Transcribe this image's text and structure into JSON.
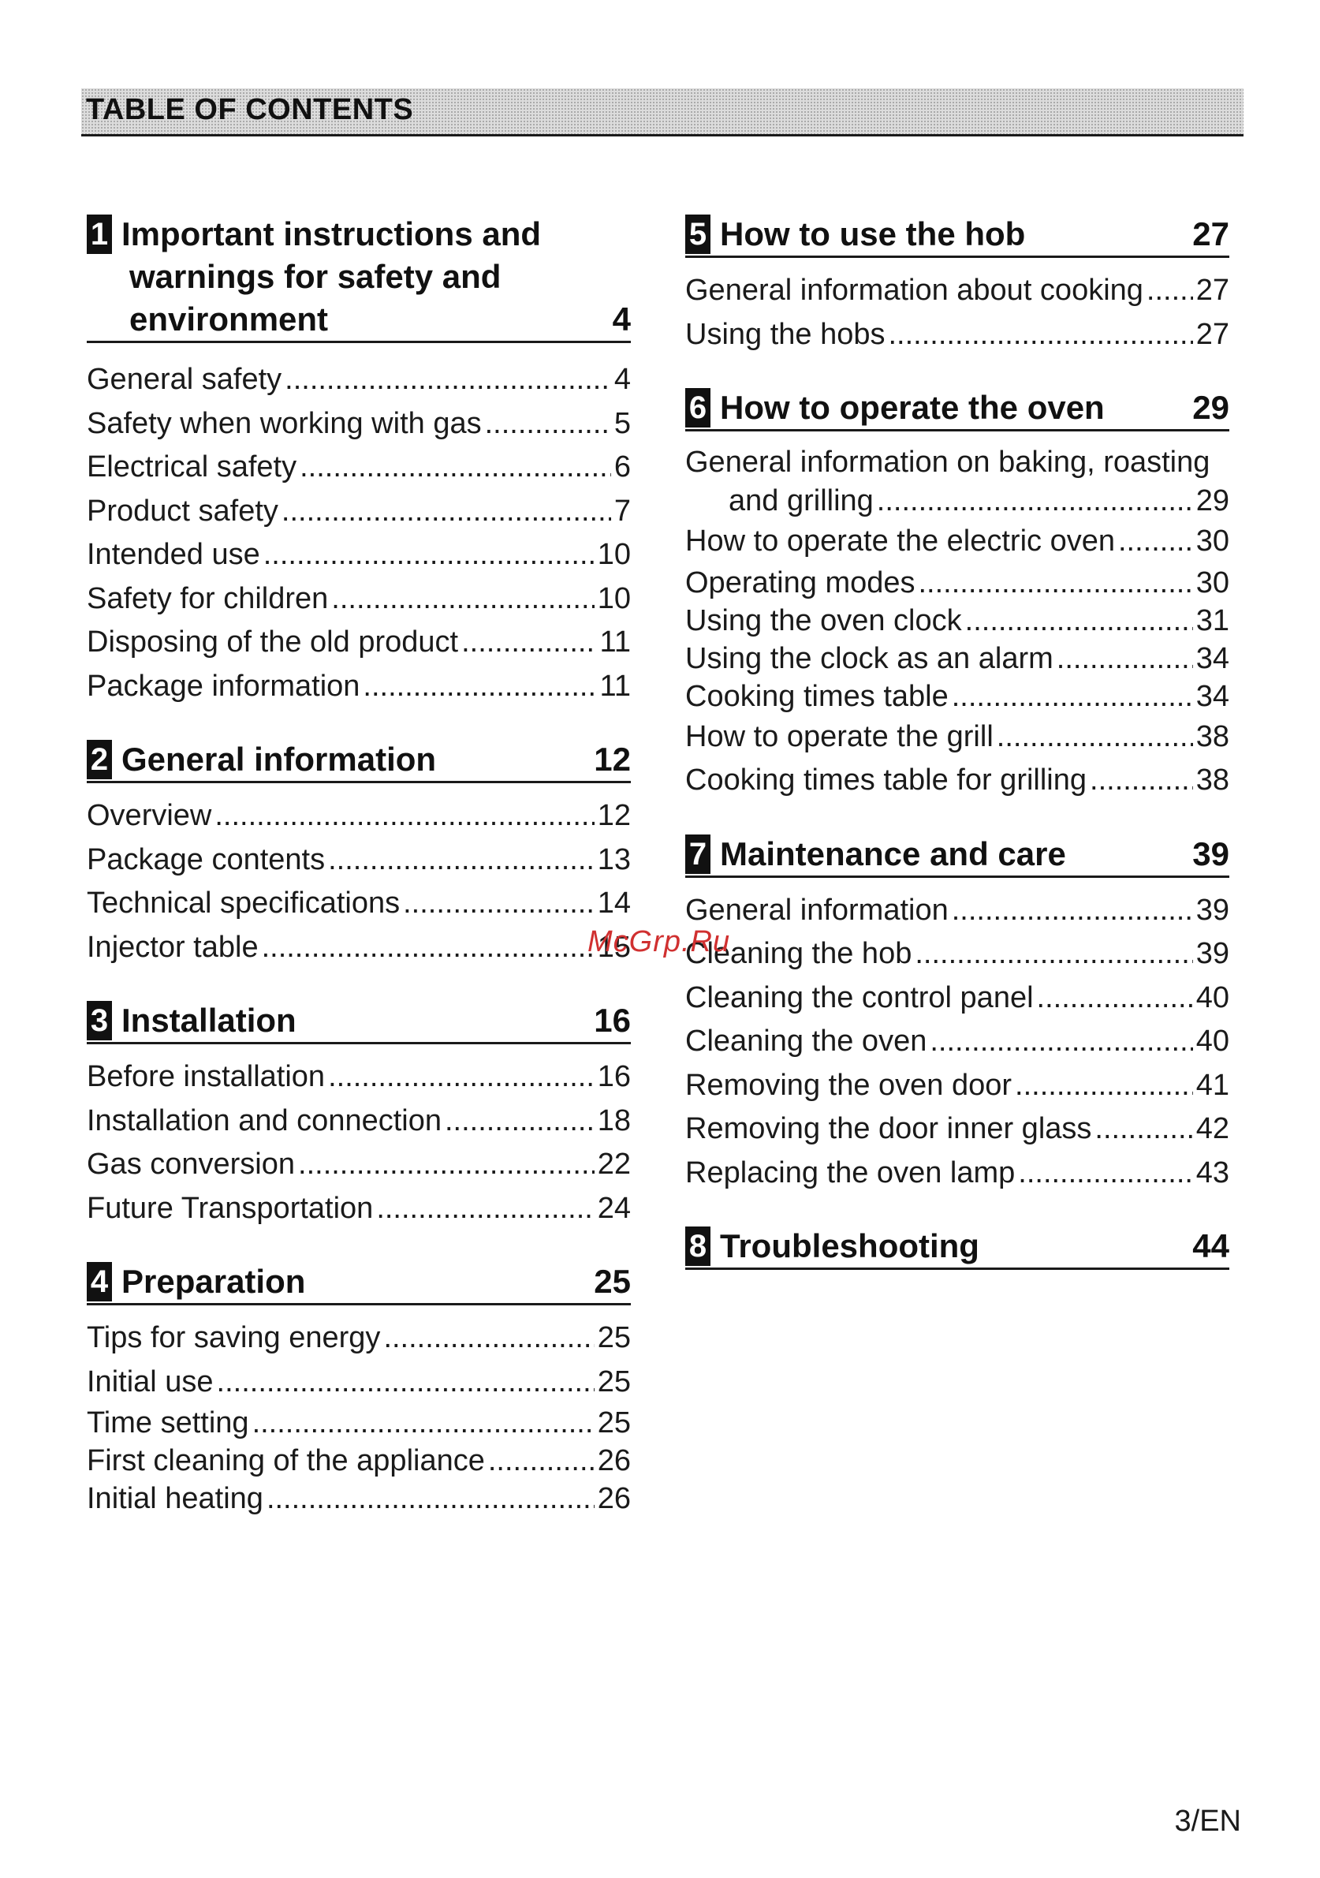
{
  "header": {
    "title": "TABLE OF CONTENTS"
  },
  "sections": [
    {
      "num": "1",
      "title_lines": [
        "Important instructions and",
        "warnings for safety and",
        "environment"
      ],
      "page": "4",
      "entries": [
        {
          "label": "General safety",
          "page": "4"
        },
        {
          "label": "Safety when working with gas",
          "page": "5"
        },
        {
          "label": "Electrical safety",
          "page": "6"
        },
        {
          "label": "Product safety",
          "page": "7"
        },
        {
          "label": "Intended use",
          "page": "10"
        },
        {
          "label": "Safety for children",
          "page": "10"
        },
        {
          "label": "Disposing of the old product",
          "page": "11"
        },
        {
          "label": "Package information",
          "page": "11"
        }
      ]
    },
    {
      "num": "2",
      "title": "General information",
      "page": "12",
      "entries": [
        {
          "label": "Overview",
          "page": "12"
        },
        {
          "label": "Package contents",
          "page": "13"
        },
        {
          "label": "Technical specifications",
          "page": "14"
        },
        {
          "label": "Injector table",
          "page": "15"
        }
      ]
    },
    {
      "num": "3",
      "title": "Installation",
      "page": "16",
      "entries": [
        {
          "label": "Before installation",
          "page": "16"
        },
        {
          "label": "Installation and connection",
          "page": "18"
        },
        {
          "label": "Gas conversion",
          "page": "22"
        },
        {
          "label": "Future Transportation",
          "page": "24"
        }
      ]
    },
    {
      "num": "4",
      "title": "Preparation",
      "page": "25",
      "entries": [
        {
          "label": "Tips for saving energy",
          "page": "25"
        },
        {
          "label": "Initial use",
          "page": "25"
        },
        {
          "label": "Time setting",
          "page": "25"
        },
        {
          "label": "First cleaning of the appliance",
          "page": "26"
        },
        {
          "label": "Initial heating",
          "page": "26"
        }
      ]
    },
    {
      "num": "5",
      "title": "How to use the hob",
      "page": "27",
      "entries": [
        {
          "label": "General information about cooking",
          "page": "27"
        },
        {
          "label": "Using the hobs",
          "page": "27"
        }
      ]
    },
    {
      "num": "6",
      "title": "How to operate the oven",
      "page": "29",
      "entries": [
        {
          "label": "General information on baking, roasting",
          "cont": "and grilling",
          "page": "29"
        },
        {
          "label": "How to operate the electric oven",
          "page": "30"
        },
        {
          "label": "Operating modes",
          "page": "30"
        },
        {
          "label": "Using the oven clock",
          "page": "31"
        },
        {
          "label": "Using the clock as an alarm",
          "page": "34"
        },
        {
          "label": "Cooking times table",
          "page": "34"
        },
        {
          "label": "How to operate the grill",
          "page": "38"
        },
        {
          "label": "Cooking times table for grilling",
          "page": "38"
        }
      ]
    },
    {
      "num": "7",
      "title": "Maintenance and care",
      "page": "39",
      "entries": [
        {
          "label": "General information",
          "page": "39"
        },
        {
          "label": "Cleaning the hob",
          "page": "39"
        },
        {
          "label": "Cleaning the control panel",
          "page": "40"
        },
        {
          "label": "Cleaning the oven",
          "page": "40"
        },
        {
          "label": "Removing the oven door",
          "page": "41"
        },
        {
          "label": "Removing the door inner glass",
          "page": "42"
        },
        {
          "label": "Replacing the oven lamp",
          "page": "43"
        }
      ]
    },
    {
      "num": "8",
      "title": "Troubleshooting",
      "page": "44",
      "entries": []
    }
  ],
  "watermark": "McGrp.Ru",
  "footer": {
    "page_label": "3/EN"
  }
}
